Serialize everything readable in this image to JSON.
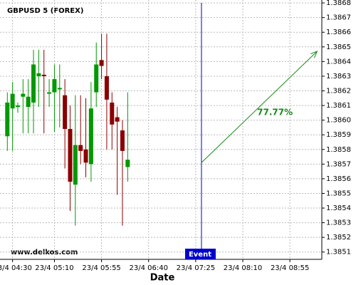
{
  "chart_data": {
    "type": "candlestick",
    "title": "GBPUSD 5 (FOREX)",
    "x_label": "Date",
    "watermark": "www.delkos.com",
    "categories": [
      null,
      null,
      null,
      null,
      null,
      null,
      null,
      null,
      null,
      null,
      null,
      null,
      null,
      null,
      null,
      null,
      null,
      null,
      null,
      null,
      null,
      null,
      null,
      null
    ],
    "open": [
      1.38589,
      1.38608,
      1.38609,
      1.38616,
      1.38609,
      1.38612,
      1.3863,
      1.38631,
      1.38619,
      1.38619,
      1.38621,
      1.38617,
      1.38594,
      1.38556,
      1.38583,
      1.3858,
      1.3857,
      1.38619,
      1.38641,
      1.3863,
      1.38612,
      1.38602,
      1.38593,
      1.38568
    ],
    "high": [
      1.38619,
      1.38626,
      1.38612,
      1.38628,
      1.38628,
      1.38648,
      1.38648,
      1.38648,
      1.38628,
      1.38638,
      1.38638,
      1.38628,
      1.3861,
      1.38617,
      1.38617,
      1.38615,
      1.38626,
      1.38653,
      1.38659,
      1.38659,
      1.38619,
      1.38609,
      1.386,
      1.38619
    ],
    "low": [
      1.38579,
      1.38579,
      1.38605,
      1.38591,
      1.38591,
      1.38591,
      1.38609,
      1.38591,
      1.38609,
      1.38592,
      1.38595,
      1.38567,
      1.38538,
      1.38528,
      1.3857,
      1.38561,
      1.38558,
      1.38609,
      1.38628,
      1.3858,
      1.3858,
      1.38549,
      1.38528,
      1.38558
    ],
    "close": [
      1.38612,
      1.38618,
      1.3861,
      1.38618,
      1.38616,
      1.38638,
      1.38632,
      1.3863,
      1.38619,
      1.38628,
      1.38622,
      1.38594,
      1.38558,
      1.38583,
      1.38579,
      1.38571,
      1.38608,
      1.38638,
      1.38637,
      1.38614,
      1.38597,
      1.38599,
      1.38579,
      1.38573
    ],
    "up_color": "#009900",
    "down_color": "#8b0000",
    "xlim": [
      -1.4,
      60.1
    ],
    "xticks": [
      {
        "value": 1,
        "label": "23/4 04:30"
      },
      {
        "value": 9,
        "label": "23/4 05:10"
      },
      {
        "value": 18,
        "label": "23/4 05:55"
      },
      {
        "value": 27,
        "label": "23/4 06:40"
      },
      {
        "value": 36,
        "label": "23/4 07:25"
      },
      {
        "value": 45,
        "label": "23/4 08:10"
      },
      {
        "value": 54,
        "label": "23/4 08:55"
      }
    ],
    "ylim": [
      1.38505,
      1.38682
    ],
    "yticks": [
      1.3851,
      1.3852,
      1.3853,
      1.3854,
      1.3855,
      1.3856,
      1.3857,
      1.3858,
      1.3859,
      {
        "value": 1.386,
        "label": "1.3860"
      },
      1.3861,
      1.3862,
      1.3863,
      1.3864,
      1.3865,
      1.3866,
      1.3867,
      1.3868
    ],
    "grid": true,
    "event": {
      "label": "Event",
      "x": 37.1,
      "color": "#0000cc"
    },
    "arrow": {
      "x": [
        37.1,
        59.2
      ],
      "y": [
        1.38571,
        1.38647
      ],
      "label": "77.77%",
      "color": "#1a8a1a"
    }
  }
}
